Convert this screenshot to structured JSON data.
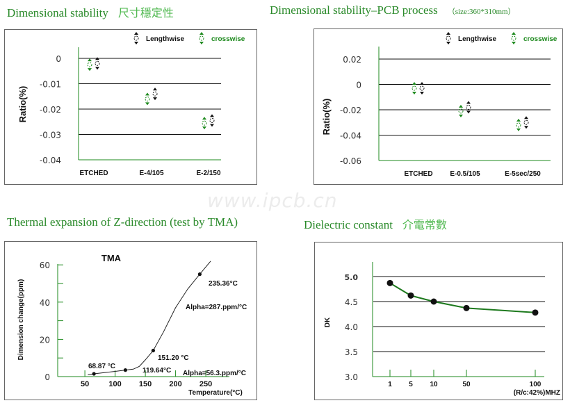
{
  "titles": {
    "dim_stability": "Dimensional stability",
    "dim_stability_cjk": "尺寸穩定性",
    "pcb_process": "Dimensional stability–PCB process",
    "pcb_process_size": "（size:360*310mm）",
    "thermal": "Thermal expansion of Z-direction (test by TMA)",
    "dielectric": "Dielectric constant",
    "dielectric_cjk": "介電常數"
  },
  "watermark": "www.ipcb.cn",
  "chart_data": [
    {
      "type": "scatter",
      "ylabel": "Ratio(%)",
      "categories": [
        "ETCHED",
        "E-4/105",
        "E-2/150"
      ],
      "yticks": [
        "0",
        "-0.01",
        "-0.02",
        "-0.03",
        "-0.04"
      ],
      "ylim": [
        -0.04,
        0
      ],
      "grid": true,
      "legend": "top-right",
      "series": [
        {
          "name": "Lengthwise",
          "color": "#111111",
          "values": [
            -0.002,
            -0.014,
            -0.0245
          ]
        },
        {
          "name": "crosswise",
          "color": "#1e8a1e",
          "values": [
            -0.0025,
            -0.016,
            -0.0255
          ]
        }
      ]
    },
    {
      "type": "scatter",
      "ylabel": "Ratio(%)",
      "categories": [
        "ETCHED",
        "E-0.5/105",
        "E-5sec/250"
      ],
      "yticks": [
        "0.02",
        "0",
        "-0.02",
        "-0.04",
        "-0.06"
      ],
      "ylim": [
        -0.06,
        0.02
      ],
      "grid": true,
      "legend": "top-right",
      "series": [
        {
          "name": "Lengthwise",
          "color": "#111111",
          "values": [
            -0.003,
            -0.018,
            -0.03
          ]
        },
        {
          "name": "crosswise",
          "color": "#1e8a1e",
          "values": [
            -0.003,
            -0.021,
            -0.032
          ]
        }
      ]
    },
    {
      "type": "line",
      "title": "TMA",
      "xlabel": "Temperature(°C)",
      "ylabel": "Dimension change(ppm)",
      "xticks": [
        "50",
        "100",
        "150",
        "200",
        "250"
      ],
      "yticks": [
        "0",
        "20",
        "40",
        "60"
      ],
      "ylim": [
        0,
        60
      ],
      "curve": {
        "x": [
          55,
          65,
          100,
          117,
          130,
          140,
          150,
          163,
          180,
          200,
          220,
          240,
          258
        ],
        "y": [
          1,
          1.5,
          2.8,
          3.5,
          4,
          5.5,
          9,
          14,
          24,
          37,
          47,
          55,
          62
        ]
      },
      "points": {
        "x": [
          65,
          117,
          163,
          240
        ],
        "y": [
          1.5,
          3.5,
          14,
          55
        ]
      },
      "annotations": [
        "68.87 °C",
        "119.64°C",
        "151.20 °C",
        "235.36°C",
        "Alpha=287.ppm/°C",
        "Alpha=56.3.ppm/°C"
      ]
    },
    {
      "type": "line",
      "xlabel": "(R/c:42%)MHZ",
      "ylabel": "DK",
      "categories": [
        "1",
        "5",
        "10",
        "50",
        "100"
      ],
      "values": [
        4.87,
        4.62,
        4.5,
        4.37,
        4.28
      ],
      "yticks": [
        "5.0",
        "4.5",
        "4.0",
        "3.5",
        "3.0"
      ],
      "ylim": [
        3.0,
        5.0
      ],
      "grid": true,
      "color": "#1e7a1e"
    }
  ]
}
